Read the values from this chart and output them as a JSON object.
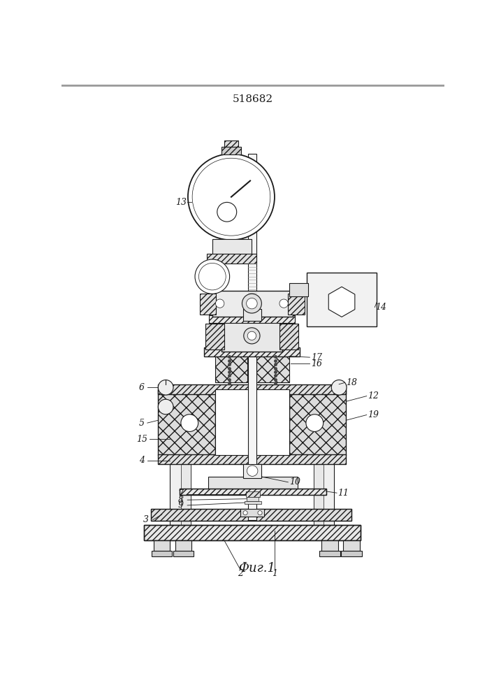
{
  "title": "518682",
  "caption": "Фиг.1",
  "bg_color": "#ffffff",
  "lc": "#1a1a1a",
  "figsize": [
    7.07,
    10.0
  ]
}
